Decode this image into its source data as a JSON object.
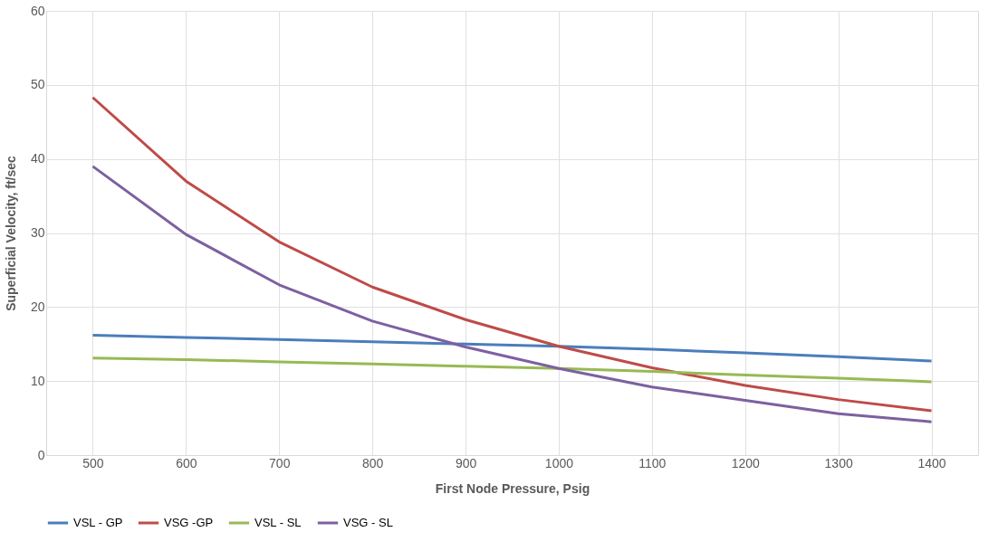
{
  "chart_data": {
    "type": "line",
    "xlabel": "First Node Pressure, Psig",
    "ylabel": "Superficial Velocity, ft/sec",
    "categories": [
      "500",
      "600",
      "700",
      "800",
      "900",
      "1000",
      "1100",
      "1200",
      "1300",
      "1400"
    ],
    "series": [
      {
        "name": "VSL - GP",
        "color": "#4a7ebb",
        "values": [
          16.2,
          15.9,
          15.6,
          15.3,
          15.0,
          14.7,
          14.3,
          13.8,
          13.3,
          12.7
        ]
      },
      {
        "name": "VSG -GP",
        "color": "#be4b48",
        "values": [
          48.3,
          37.0,
          28.8,
          22.7,
          18.3,
          14.7,
          11.8,
          9.4,
          7.5,
          6.0
        ]
      },
      {
        "name": "VSL - SL",
        "color": "#98b954",
        "values": [
          13.1,
          12.9,
          12.6,
          12.3,
          12.0,
          11.7,
          11.3,
          10.8,
          10.4,
          9.9
        ]
      },
      {
        "name": "VSG - SL",
        "color": "#7d60a0",
        "values": [
          39.0,
          29.8,
          23.0,
          18.1,
          14.6,
          11.7,
          9.2,
          7.4,
          5.6,
          4.5
        ]
      }
    ],
    "ylim": [
      0,
      60
    ],
    "yticks": [
      0,
      10,
      20,
      30,
      40,
      50,
      60
    ],
    "grid": true,
    "legend": "bottom",
    "marker": "none",
    "line_style": "solid"
  }
}
